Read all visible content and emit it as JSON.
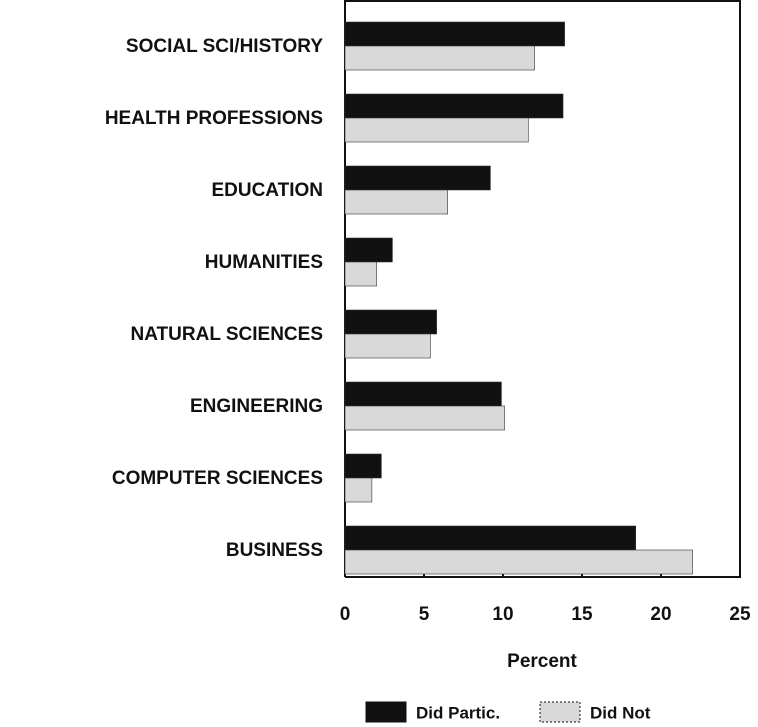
{
  "chart_data": {
    "type": "bar",
    "orientation": "horizontal",
    "categories": [
      "SOCIAL SCI/HISTORY",
      "HEALTH PROFESSIONS",
      "EDUCATION",
      "HUMANITIES",
      "NATURAL SCIENCES",
      "ENGINEERING",
      "COMPUTER SCIENCES",
      "BUSINESS"
    ],
    "series": [
      {
        "name": "Did Partic.",
        "color": "#111111",
        "values": [
          13.9,
          13.8,
          9.2,
          3.0,
          5.8,
          9.9,
          2.3,
          18.4
        ]
      },
      {
        "name": "Did Not",
        "color": "#d9d9d9",
        "values": [
          12.0,
          11.6,
          6.5,
          2.0,
          5.4,
          10.1,
          1.7,
          22.0
        ]
      }
    ],
    "xlabel": "Percent",
    "xlim": [
      0,
      25
    ],
    "xticks": [
      0,
      5,
      10,
      15,
      20,
      25
    ]
  }
}
